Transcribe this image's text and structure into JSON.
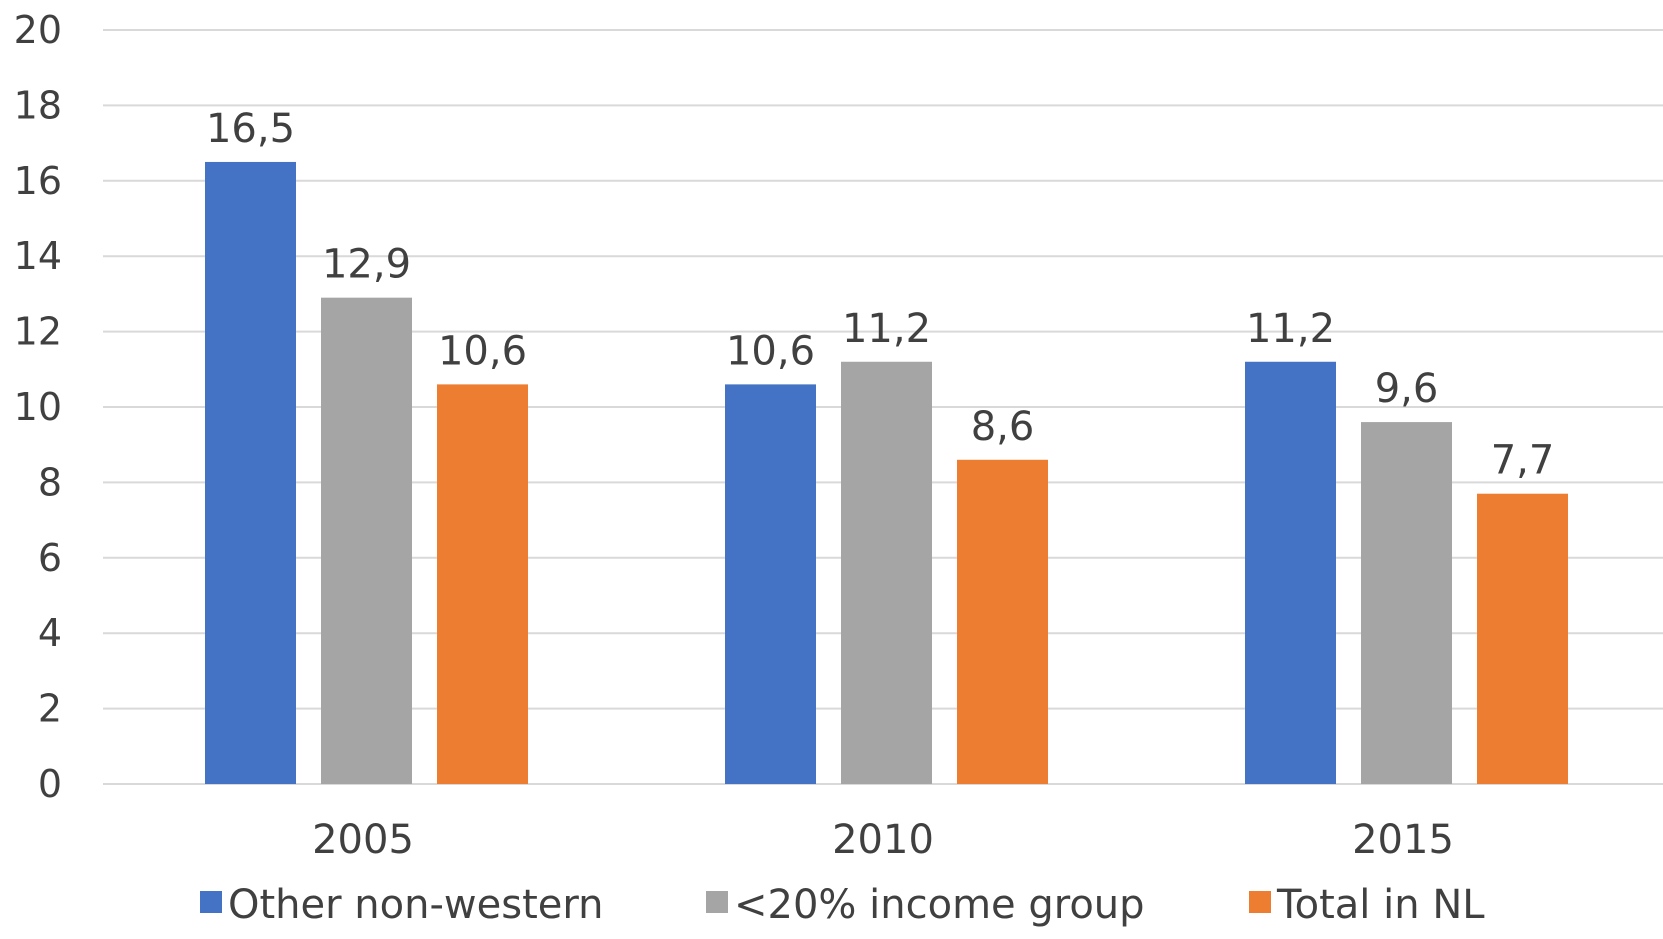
{
  "chart_data": {
    "type": "bar",
    "categories": [
      "2005",
      "2010",
      "2015"
    ],
    "series": [
      {
        "name": "Other non-western",
        "color": "#4472c4",
        "values": [
          16.5,
          10.6,
          11.2
        ],
        "labels": [
          "16,5",
          "10,6",
          "11,2"
        ]
      },
      {
        "name": "<20% income group",
        "color": "#a5a5a5",
        "values": [
          12.9,
          11.2,
          9.6
        ],
        "labels": [
          "12,9",
          "11,2",
          "9,6"
        ]
      },
      {
        "name": "Total in NL",
        "color": "#ed7d31",
        "values": [
          10.6,
          8.6,
          7.7
        ],
        "labels": [
          "10,6",
          "8,6",
          "7,7"
        ]
      }
    ],
    "ylim": [
      0,
      20
    ],
    "yticks": [
      0,
      2,
      4,
      6,
      8,
      10,
      12,
      14,
      16,
      18,
      20
    ],
    "grid": true,
    "legend": "bottom",
    "title": "",
    "xlabel": "",
    "ylabel": ""
  }
}
